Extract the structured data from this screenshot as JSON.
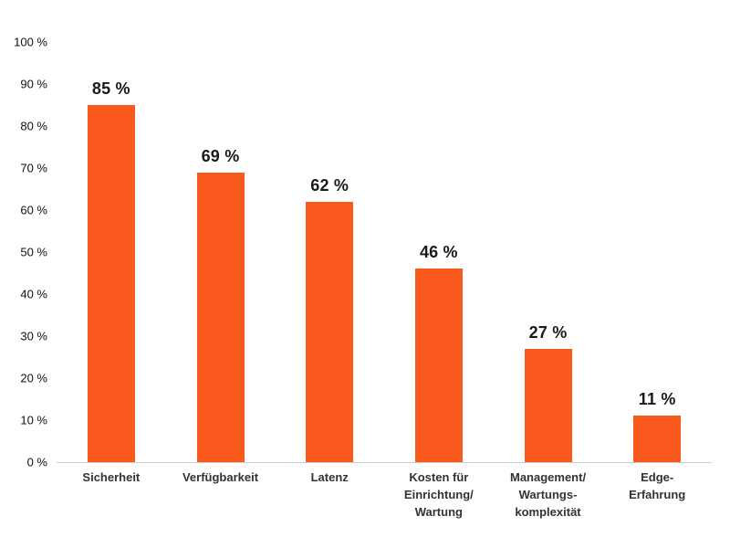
{
  "chart_data": {
    "type": "bar",
    "title": "",
    "xlabel": "",
    "ylabel": "",
    "ylim": [
      0,
      100
    ],
    "grid": false,
    "legend": false,
    "bar_color": "#F9591D",
    "y_ticks": [
      "0 %",
      "10 %",
      "20 %",
      "30 %",
      "40 %",
      "50 %",
      "60 %",
      "70 %",
      "80 %",
      "90 %",
      "100 %"
    ],
    "categories": [
      "Sicherheit",
      "Verfügbarkeit",
      "Latenz",
      "Kosten für\nEinrichtung/\nWartung",
      "Management/\nWartungs-\nkomplexität",
      "Edge-\nErfahrung"
    ],
    "values": [
      85,
      69,
      62,
      46,
      27,
      11
    ],
    "value_labels": [
      "85 %",
      "69 %",
      "62 %",
      "46 %",
      "27 %",
      "11 %"
    ]
  }
}
